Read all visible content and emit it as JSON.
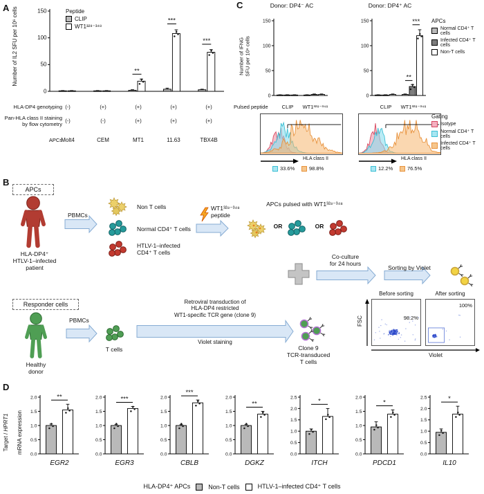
{
  "colors": {
    "bar_gray": "#b9b9b9",
    "bar_dark_gray": "#7d7d7d",
    "bar_white": "#ffffff",
    "isotype_fill": "#f4b0c0",
    "isotype_border": "#d6485f",
    "cyan_fill": "#a8e6f2",
    "cyan_border": "#3bbfd4",
    "orange_fill": "#f6c68c",
    "orange_border": "#e8923c"
  },
  "panel_a": {
    "label": "A",
    "ylabel": "Number of IL2 SFU per 10⁶ cells",
    "legend_title": "Peptide",
    "legend": [
      {
        "label": "CLIP"
      },
      {
        "label": "WT1³²⁸⁻³⁴⁸"
      }
    ],
    "table": {
      "rows": [
        {
          "label": "HLA-DP4 genotyping",
          "values": [
            "(-)",
            "(+)",
            "(+)",
            "(+)",
            "(+)"
          ]
        },
        {
          "label": "Pan-HLA class II staining\nby flow cytometry",
          "values": [
            "(-)",
            "(-)",
            "(+)",
            "(+)",
            "(+)"
          ]
        },
        {
          "label": "APCs",
          "values": [
            "Molt4",
            "CEM",
            "MT1",
            "11.63",
            "TBX4B"
          ]
        }
      ]
    }
  },
  "panel_c": {
    "label": "C",
    "ylabel": "Number of IFNG\nSFU per 10⁶ cells",
    "titles": [
      "Donor: DP4⁻ AC",
      "Donor: DP4⁺ AC"
    ],
    "apcs_legend": {
      "title": "APCs",
      "items": [
        "Normal CD4⁺ T cells",
        "Infected CD4⁺ T cells",
        "Non-T cells"
      ]
    },
    "pulsed_peptide_label": "Pulsed peptide",
    "peptides": [
      "CLIP",
      "WT1³²⁸⁻³⁴⁸"
    ],
    "gating_legend": {
      "title": "Gating",
      "items": [
        "Isotype",
        "Normal CD4⁺ T cells",
        "Infected CD4⁺ T cells"
      ]
    },
    "hla_axis_label": "HLA class II",
    "percentages": [
      [
        "33.6%",
        "98.8%"
      ],
      [
        "12.2%",
        "76.5%"
      ]
    ]
  },
  "panel_b": {
    "label": "B",
    "apcs_box": "APCs",
    "patient": "HLA-DP4⁺\nHTLV-1–infected\npatient",
    "pbmcs1": "PBMCs",
    "pbmcs2": "PBMCs",
    "non_t_cells": "Non T cells",
    "normal_cd4": "Normal CD4⁺ T cells",
    "infected_cd4": "HTLV-1–infected\nCD4⁺ T cells",
    "peptide": "WT1³²⁸⁻³⁴⁸\npeptide",
    "pulsed": "APCs pulsed with WT1³²⁸⁻³⁴⁸",
    "or1": "OR",
    "or2": "OR",
    "coculture": "Co-culture\nfor 24 hours",
    "sorting": "Sorting by Violet",
    "responder_box": "Responder cells",
    "healthy_donor": "Healthy\ndonor",
    "t_cells": "T cells",
    "transduction": "Retroviral transduction of\nHLA-DP4 restricted\nWT1-specific TCR gene (clone 9)",
    "violet_staining": "Violet staining",
    "clone9": "Clone 9\nTCR-transduced\nT cells",
    "fsc": "FSC",
    "before_sorting": "Before sorting",
    "after_sorting": "After sorting",
    "before_pct": "98.2%",
    "after_pct": "100%",
    "violet": "Violet"
  },
  "panel_d": {
    "label": "D",
    "ylabel_pre": "Target / ",
    "ylabel_gene": "HPRT1",
    "ylabel_line2": "mRNA expression",
    "legend_title": "HLA-DP4⁺ APCs",
    "legend": [
      {
        "label": "Non-T cells"
      },
      {
        "label": "HTLV-1–infected CD4⁺ T cells"
      }
    ]
  },
  "chart_data": {
    "panel_a": {
      "type": "bar",
      "ylabel": "Number of IL2 SFU per 10⁶ cells",
      "ylim": [
        0,
        150
      ],
      "yticks": [
        0,
        50,
        100,
        150
      ],
      "categories": [
        "Molt4",
        "CEM",
        "MT1",
        "11.63",
        "TBX4B"
      ],
      "series": [
        {
          "name": "CLIP",
          "color": "#b9b9b9",
          "values": [
            1,
            1,
            2,
            4,
            3
          ],
          "errors": [
            0.5,
            0.5,
            1,
            2,
            1
          ]
        },
        {
          "name": "WT1³²⁸⁻³⁴⁸",
          "color": "#ffffff",
          "values": [
            1,
            1,
            19,
            108,
            73
          ],
          "errors": [
            0.5,
            0.5,
            4,
            7,
            5
          ]
        }
      ],
      "significance": [
        {
          "group": 2,
          "from": 0,
          "to": 1,
          "y": 32,
          "label": "**"
        },
        {
          "group": 3,
          "from": 0,
          "to": 1,
          "y": 126,
          "label": "***"
        },
        {
          "group": 4,
          "from": 0,
          "to": 1,
          "y": 88,
          "label": "***"
        }
      ]
    },
    "panel_c_charts": [
      {
        "type": "bar",
        "title": "Donor: DP4⁻ AC",
        "ylim": [
          0,
          150
        ],
        "yticks": [
          0,
          50,
          100,
          150
        ],
        "categories": [
          "CLIP",
          "WT1³²⁸⁻³⁴⁸"
        ],
        "series": [
          {
            "name": "Normal CD4⁺ T cells",
            "color": "#c4c4c4",
            "values": [
              1,
              1
            ],
            "errors": [
              0.5,
              0.5
            ]
          },
          {
            "name": "Infected CD4⁺ T cells",
            "color": "#7d7d7d",
            "values": [
              1,
              2
            ],
            "errors": [
              0.5,
              1
            ]
          },
          {
            "name": "Non-T cells",
            "color": "#ffffff",
            "values": [
              1,
              2
            ],
            "errors": [
              0.5,
              1
            ]
          }
        ],
        "significance": []
      },
      {
        "type": "bar",
        "title": "Donor: DP4⁺ AC",
        "ylim": [
          0,
          150
        ],
        "yticks": [
          0,
          50,
          100,
          150
        ],
        "categories": [
          "CLIP",
          "WT1³²⁸⁻³⁴⁸"
        ],
        "series": [
          {
            "name": "Normal CD4⁺ T cells",
            "color": "#c4c4c4",
            "values": [
              1,
              2
            ],
            "errors": [
              0.5,
              1
            ]
          },
          {
            "name": "Infected CD4⁺ T cells",
            "color": "#7d7d7d",
            "values": [
              1,
              18
            ],
            "errors": [
              0.5,
              4
            ]
          },
          {
            "name": "Non-T cells",
            "color": "#ffffff",
            "values": [
              2,
              120
            ],
            "errors": [
              1,
              12
            ]
          }
        ],
        "significance": [
          {
            "group": 1,
            "from": 0,
            "to": 1,
            "y": 30,
            "label": "**"
          },
          {
            "group": 1,
            "from": 1,
            "to": 2,
            "y": 142,
            "label": "***"
          }
        ]
      }
    ],
    "histograms": [
      {
        "xlabel": "HLA class II",
        "curves": [
          {
            "name": "Isotype",
            "center": 0.22,
            "sigma": 0.07,
            "height": 0.8
          },
          {
            "name": "Normal CD4⁺ T cells",
            "center": 0.28,
            "sigma": 0.09,
            "height": 0.9
          },
          {
            "name": "Infected CD4⁺ T cells",
            "center": 0.52,
            "sigma": 0.17,
            "height": 0.8,
            "spiky": true
          }
        ],
        "gate_stats": [
          {
            "population": "Normal CD4⁺ T cells",
            "value": "33.6%"
          },
          {
            "population": "Infected CD4⁺ T cells",
            "value": "98.8%"
          }
        ]
      },
      {
        "xlabel": "HLA class II",
        "curves": [
          {
            "name": "Isotype",
            "center": 0.2,
            "sigma": 0.06,
            "height": 0.85
          },
          {
            "name": "Normal CD4⁺ T cells",
            "center": 0.24,
            "sigma": 0.07,
            "height": 0.92
          },
          {
            "name": "Infected CD4⁺ T cells",
            "center": 0.62,
            "sigma": 0.14,
            "height": 0.85,
            "spiky": true
          }
        ],
        "gate_stats": [
          {
            "population": "Normal CD4⁺ T cells",
            "value": "12.2%"
          },
          {
            "population": "Infected CD4⁺ T cells",
            "value": "76.5%"
          }
        ]
      }
    ],
    "flow_plots": [
      {
        "title": "Before sorting",
        "xlabel": "Violet",
        "ylabel": "FSC",
        "gated_percent": "98.2%"
      },
      {
        "title": "After sorting",
        "xlabel": "Violet",
        "gated_percent": "100%"
      }
    ],
    "panel_d": {
      "type": "bar",
      "ylabel": "Target / HPRT1 mRNA expression",
      "series_names": [
        "Non-T cells",
        "HTLV-1–infected CD4⁺ T cells"
      ],
      "series_colors": [
        "#b9b9b9",
        "#ffffff"
      ],
      "charts": [
        {
          "gene": "EGR2",
          "ylim": [
            0,
            2.0
          ],
          "yticks": [
            0,
            0.5,
            1,
            1.5,
            2
          ],
          "values": [
            1.0,
            1.55
          ],
          "errors": [
            0.05,
            0.2
          ],
          "sig": "**"
        },
        {
          "gene": "EGR3",
          "ylim": [
            0,
            2.0
          ],
          "yticks": [
            0,
            0.5,
            1,
            1.5,
            2
          ],
          "values": [
            1.0,
            1.6
          ],
          "errors": [
            0.04,
            0.07
          ],
          "sig": "***"
        },
        {
          "gene": "CBLB",
          "ylim": [
            0,
            2.0
          ],
          "yticks": [
            0,
            0.5,
            1,
            1.5,
            2
          ],
          "values": [
            1.0,
            1.8
          ],
          "errors": [
            0.03,
            0.1
          ],
          "sig": "***"
        },
        {
          "gene": "DGKZ",
          "ylim": [
            0,
            2.0
          ],
          "yticks": [
            0,
            0.5,
            1,
            1.5,
            2
          ],
          "values": [
            1.0,
            1.4
          ],
          "errors": [
            0.04,
            0.1
          ],
          "sig": "**"
        },
        {
          "gene": "ITCH",
          "ylim": [
            0,
            2.5
          ],
          "yticks": [
            0,
            0.5,
            1,
            1.5,
            2,
            2.5
          ],
          "values": [
            1.0,
            1.65
          ],
          "errors": [
            0.1,
            0.35
          ],
          "sig": "*"
        },
        {
          "gene": "PDCD1",
          "ylim": [
            0,
            2.0
          ],
          "yticks": [
            0,
            0.5,
            1,
            1.5,
            2
          ],
          "values": [
            0.95,
            1.4
          ],
          "errors": [
            0.18,
            0.15
          ],
          "sig": "*"
        },
        {
          "gene": "IL10",
          "ylim": [
            0,
            2.5
          ],
          "yticks": [
            0,
            0.5,
            1,
            1.5,
            2,
            2.5
          ],
          "values": [
            0.95,
            1.75
          ],
          "errors": [
            0.15,
            0.35
          ],
          "sig": "*"
        }
      ]
    }
  }
}
